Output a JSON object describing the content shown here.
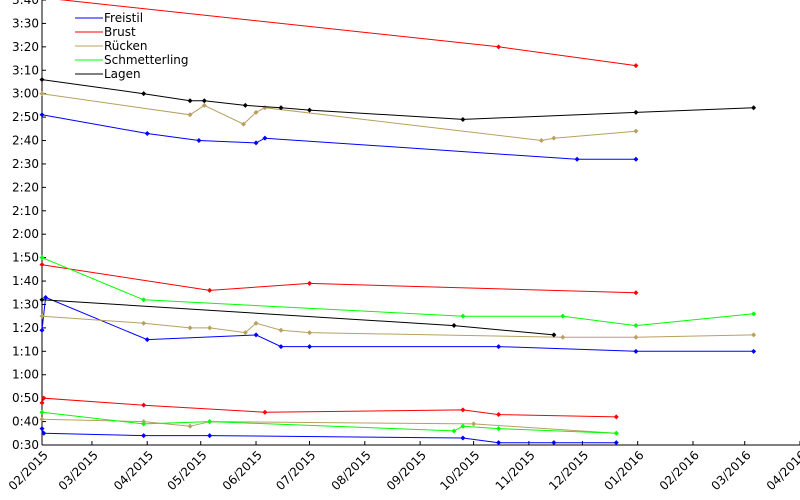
{
  "chart_data": {
    "type": "line",
    "title": "",
    "xlabel": "",
    "ylabel": "",
    "grid": false,
    "legend_position": "top-left",
    "x_range": [
      "2015-02-01",
      "2016-04-01"
    ],
    "y_range_seconds": [
      30,
      220
    ],
    "y_tick_labels": [
      "0:30",
      "0:40",
      "0:50",
      "1:00",
      "1:10",
      "1:20",
      "1:30",
      "1:40",
      "1:50",
      "2:00",
      "2:10",
      "2:20",
      "2:30",
      "2:40",
      "2:50",
      "3:00",
      "3:10",
      "3:20",
      "3:30",
      "3:40"
    ],
    "x_tick_labels": [
      "02/2015",
      "03/2015",
      "04/2015",
      "05/2015",
      "06/2015",
      "07/2015",
      "08/2015",
      "09/2015",
      "10/2015",
      "11/2015",
      "12/2015",
      "01/2016",
      "02/2016",
      "03/2016",
      "04/2016"
    ],
    "series": [
      {
        "name": "Freistil",
        "color": "#0000ff",
        "lines": [
          [
            [
              "2015-02-01",
              "2:51"
            ],
            [
              "2015-04-01",
              "2:43"
            ],
            [
              "2015-04-30",
              "2:40"
            ],
            [
              "2015-06-01",
              "2:39"
            ],
            [
              "2015-06-06",
              "2:41"
            ],
            [
              "2015-11-28",
              "2:32"
            ],
            [
              "2015-12-31",
              "2:32"
            ]
          ],
          [
            [
              "2015-02-01",
              "1:19"
            ],
            [
              "2015-02-03",
              "1:33"
            ],
            [
              "2015-04-01",
              "1:15"
            ],
            [
              "2015-06-01",
              "1:17"
            ],
            [
              "2015-06-15",
              "1:12"
            ],
            [
              "2015-07-01",
              "1:12"
            ],
            [
              "2015-10-15",
              "1:12"
            ],
            [
              "2015-12-31",
              "1:10"
            ],
            [
              "2016-03-06",
              "1:10"
            ]
          ],
          [
            [
              "2015-02-01",
              "0:37"
            ],
            [
              "2015-02-02",
              "0:35"
            ],
            [
              "2015-03-30",
              "0:34"
            ],
            [
              "2015-05-06",
              "0:34"
            ],
            [
              "2015-09-25",
              "0:33"
            ],
            [
              "2015-10-15",
              "0:31"
            ],
            [
              "2015-11-15",
              "0:31"
            ],
            [
              "2015-12-20",
              "0:31"
            ]
          ]
        ]
      },
      {
        "name": "Brust",
        "color": "#ff0000",
        "lines": [
          [
            [
              "2015-02-01",
              "3:41"
            ],
            [
              "2015-10-15",
              "3:20"
            ],
            [
              "2015-12-31",
              "3:12"
            ]
          ],
          [
            [
              "2015-02-01",
              "1:47"
            ],
            [
              "2015-05-06",
              "1:36"
            ],
            [
              "2015-07-01",
              "1:39"
            ],
            [
              "2015-12-31",
              "1:35"
            ]
          ],
          [
            [
              "2015-02-01",
              "0:48"
            ],
            [
              "2015-02-02",
              "0:50"
            ],
            [
              "2015-03-30",
              "0:47"
            ],
            [
              "2015-06-06",
              "0:44"
            ],
            [
              "2015-09-25",
              "0:45"
            ],
            [
              "2015-10-15",
              "0:43"
            ],
            [
              "2015-12-20",
              "0:42"
            ]
          ]
        ]
      },
      {
        "name": "Rücken",
        "color": "#b8a060",
        "lines": [
          [
            [
              "2015-02-01",
              "3:00"
            ],
            [
              "2015-04-25",
              "2:51"
            ],
            [
              "2015-05-03",
              "2:55"
            ],
            [
              "2015-05-25",
              "2:47"
            ],
            [
              "2015-06-01",
              "2:52"
            ],
            [
              "2015-06-06",
              "2:54"
            ],
            [
              "2015-11-08",
              "2:40"
            ],
            [
              "2015-11-15",
              "2:41"
            ],
            [
              "2015-12-31",
              "2:44"
            ]
          ],
          [
            [
              "2015-02-01",
              "1:25"
            ],
            [
              "2015-03-30",
              "1:22"
            ],
            [
              "2015-04-25",
              "1:20"
            ],
            [
              "2015-05-06",
              "1:20"
            ],
            [
              "2015-05-26",
              "1:18"
            ],
            [
              "2015-06-01",
              "1:22"
            ],
            [
              "2015-06-15",
              "1:19"
            ],
            [
              "2015-07-01",
              "1:18"
            ],
            [
              "2015-11-20",
              "1:16"
            ],
            [
              "2015-12-31",
              "1:16"
            ],
            [
              "2016-03-06",
              "1:17"
            ]
          ],
          [
            [
              "2015-02-01",
              "0:41"
            ],
            [
              "2015-03-30",
              "0:40"
            ],
            [
              "2015-04-25",
              "0:38"
            ],
            [
              "2015-05-06",
              "0:40"
            ],
            [
              "2015-10-01",
              "0:39"
            ],
            [
              "2015-12-20",
              "0:35"
            ]
          ]
        ]
      },
      {
        "name": "Schmetterling",
        "color": "#00ff00",
        "lines": [
          [
            [
              "2015-02-01",
              "1:50"
            ],
            [
              "2015-03-30",
              "1:32"
            ],
            [
              "2015-09-25",
              "1:25"
            ],
            [
              "2015-11-20",
              "1:25"
            ],
            [
              "2015-12-31",
              "1:21"
            ],
            [
              "2016-03-06",
              "1:26"
            ]
          ],
          [
            [
              "2015-02-01",
              "0:44"
            ],
            [
              "2015-03-30",
              "0:39"
            ],
            [
              "2015-05-06",
              "0:40"
            ],
            [
              "2015-09-20",
              "0:36"
            ],
            [
              "2015-09-25",
              "0:38"
            ],
            [
              "2015-10-15",
              "0:37"
            ],
            [
              "2015-12-20",
              "0:35"
            ]
          ]
        ]
      },
      {
        "name": "Lagen",
        "color": "#000000",
        "lines": [
          [
            [
              "2015-02-01",
              "3:06"
            ],
            [
              "2015-03-30",
              "3:00"
            ],
            [
              "2015-04-25",
              "2:57"
            ],
            [
              "2015-05-03",
              "2:57"
            ],
            [
              "2015-05-26",
              "2:55"
            ],
            [
              "2015-06-15",
              "2:54"
            ],
            [
              "2015-07-01",
              "2:53"
            ],
            [
              "2015-09-25",
              "2:49"
            ],
            [
              "2015-12-31",
              "2:52"
            ],
            [
              "2016-03-06",
              "2:54"
            ]
          ],
          [
            [
              "2015-02-01",
              "1:32"
            ],
            [
              "2015-09-20",
              "1:21"
            ],
            [
              "2015-11-15",
              "1:17"
            ]
          ]
        ]
      }
    ]
  }
}
